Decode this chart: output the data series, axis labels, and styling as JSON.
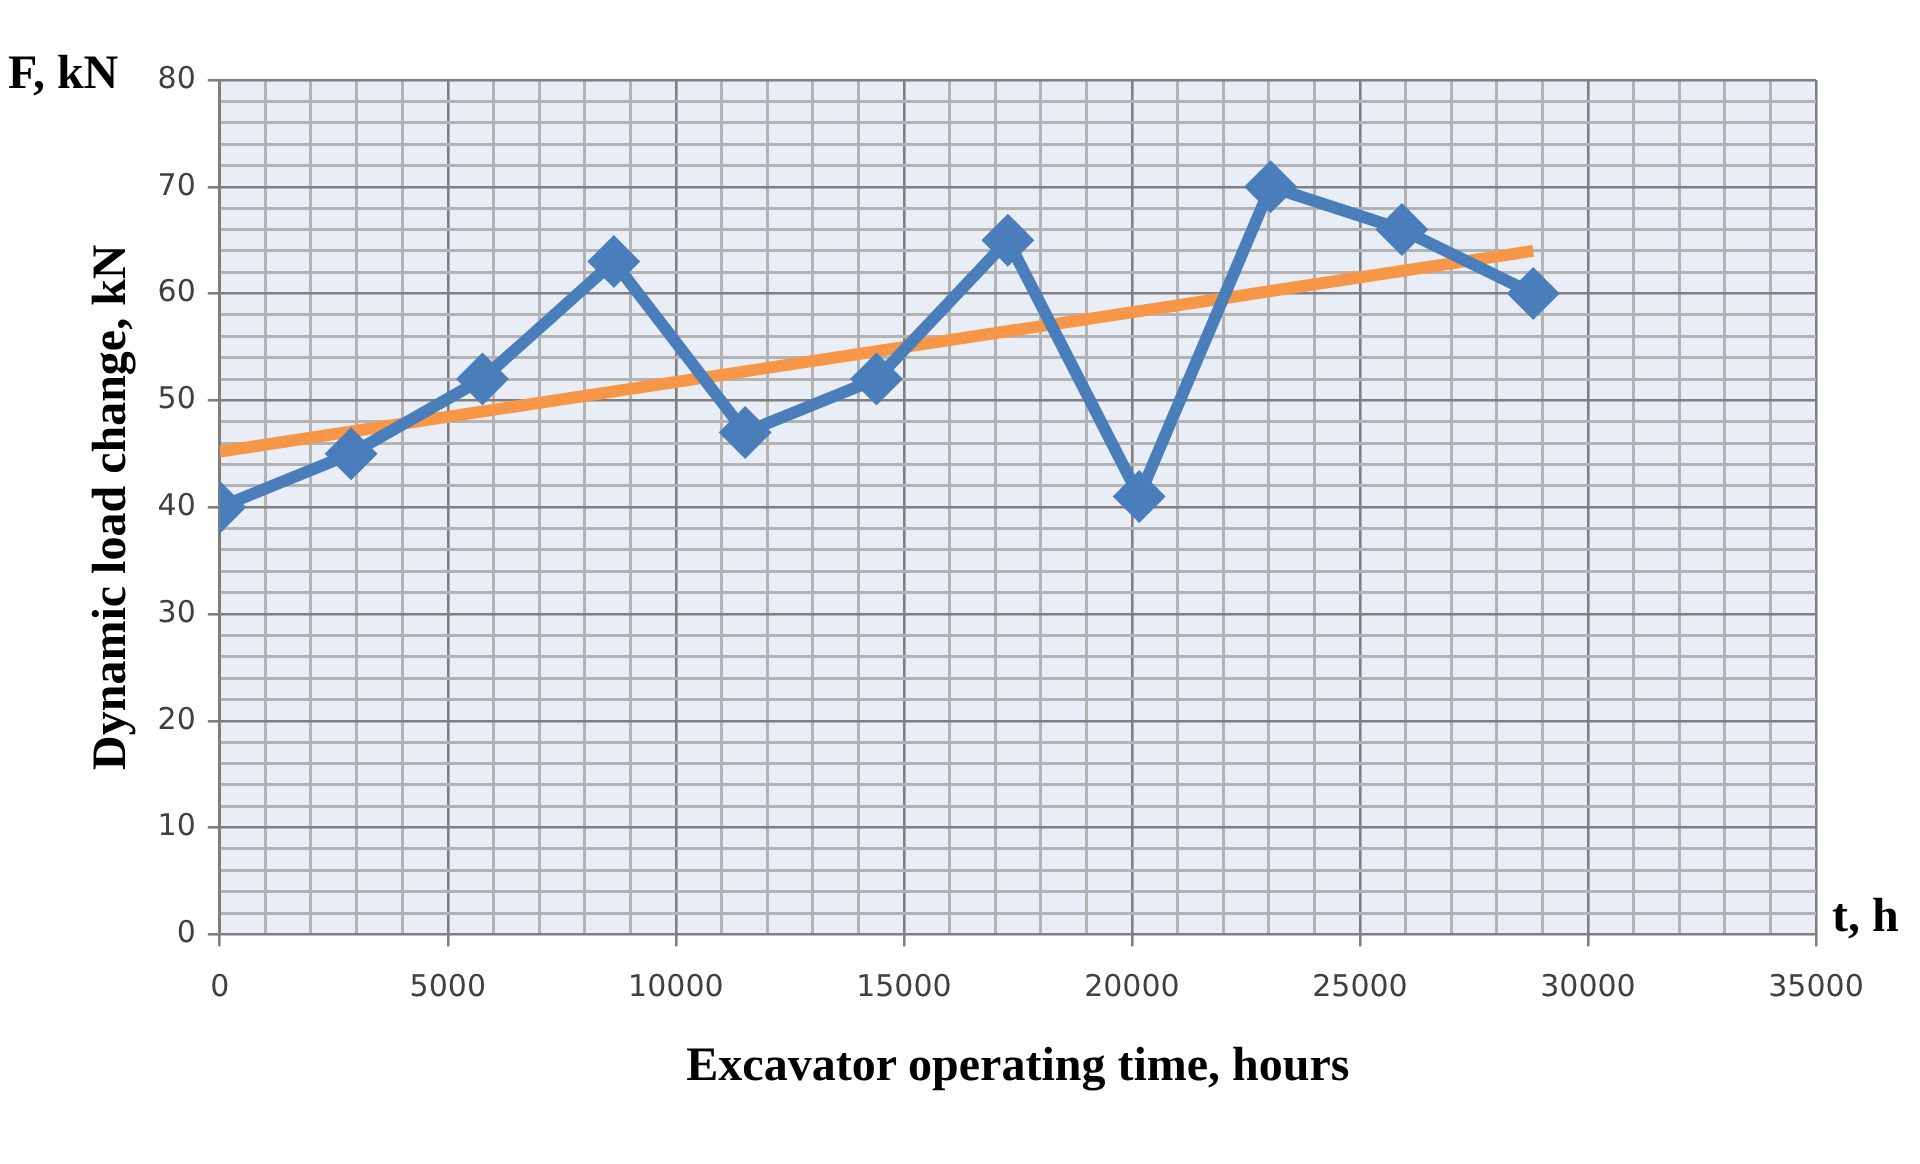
{
  "chart_data": {
    "type": "line",
    "xlabel": "Excavator operating time, hours",
    "ylabel": "Dynamic load change, kN",
    "annotations": [
      "F, kN",
      "t, h"
    ],
    "xlim": [
      0,
      35000
    ],
    "ylim": [
      0,
      80
    ],
    "xticks": [
      0,
      {
        "value": 1000,
        "label": null
      },
      {
        "value": 2000,
        "label": null
      },
      {
        "value": 3000,
        "label": null
      },
      {
        "value": 4000,
        "label": null
      },
      5000,
      {
        "value": 6000,
        "label": null
      },
      {
        "value": 7000,
        "label": null
      },
      {
        "value": 8000,
        "label": null
      },
      {
        "value": 9000,
        "label": null
      },
      10000,
      {
        "value": 11000,
        "label": null
      },
      {
        "value": 12000,
        "label": null
      },
      {
        "value": 13000,
        "label": null
      },
      {
        "value": 14000,
        "label": null
      },
      15000,
      {
        "value": 16000,
        "label": null
      },
      {
        "value": 17000,
        "label": null
      },
      {
        "value": 18000,
        "label": null
      },
      {
        "value": 19000,
        "label": null
      },
      20000,
      {
        "value": 21000,
        "label": null
      },
      {
        "value": 22000,
        "label": null
      },
      {
        "value": 23000,
        "label": null
      },
      {
        "value": 24000,
        "label": null
      },
      25000,
      {
        "value": 26000,
        "label": null
      },
      {
        "value": 27000,
        "label": null
      },
      {
        "value": 28000,
        "label": null
      },
      {
        "value": 29000,
        "label": null
      },
      30000,
      {
        "value": 31000,
        "label": null
      },
      {
        "value": 32000,
        "label": null
      },
      {
        "value": 33000,
        "label": null
      },
      {
        "value": 34000,
        "label": null
      },
      35000
    ],
    "yticks": [
      0,
      {
        "value": 2,
        "label": null
      },
      {
        "value": 4,
        "label": null
      },
      {
        "value": 6,
        "label": null
      },
      {
        "value": 8,
        "label": null
      },
      10,
      {
        "value": 12,
        "label": null
      },
      {
        "value": 14,
        "label": null
      },
      {
        "value": 16,
        "label": null
      },
      {
        "value": 18,
        "label": null
      },
      20,
      {
        "value": 22,
        "label": null
      },
      {
        "value": 24,
        "label": null
      },
      {
        "value": 26,
        "label": null
      },
      {
        "value": 28,
        "label": null
      },
      30,
      {
        "value": 32,
        "label": null
      },
      {
        "value": 34,
        "label": null
      },
      {
        "value": 36,
        "label": null
      },
      {
        "value": 38,
        "label": null
      },
      40,
      {
        "value": 42,
        "label": null
      },
      {
        "value": 44,
        "label": null
      },
      {
        "value": 46,
        "label": null
      },
      {
        "value": 48,
        "label": null
      },
      50,
      {
        "value": 52,
        "label": null
      },
      {
        "value": 54,
        "label": null
      },
      {
        "value": 56,
        "label": null
      },
      {
        "value": 58,
        "label": null
      },
      60,
      {
        "value": 62,
        "label": null
      },
      {
        "value": 64,
        "label": null
      },
      {
        "value": 66,
        "label": null
      },
      {
        "value": 68,
        "label": null
      },
      70,
      {
        "value": 72,
        "label": null
      },
      {
        "value": 74,
        "label": null
      },
      {
        "value": 76,
        "label": null
      },
      {
        "value": 78,
        "label": null
      },
      80
    ],
    "grid": true,
    "series": [
      {
        "color": "#4a7ebb",
        "marker": "diamond",
        "x": [
          0,
          2880,
          5760,
          8640,
          11520,
          14400,
          17280,
          20160,
          23040,
          25920,
          28800
        ],
        "values": [
          40,
          45,
          52,
          63,
          47,
          52,
          65,
          41,
          70,
          66,
          60
        ]
      },
      {
        "color": "#f79646",
        "marker": "none",
        "x": [
          0,
          28800
        ],
        "values": [
          45.2,
          64
        ]
      }
    ]
  }
}
